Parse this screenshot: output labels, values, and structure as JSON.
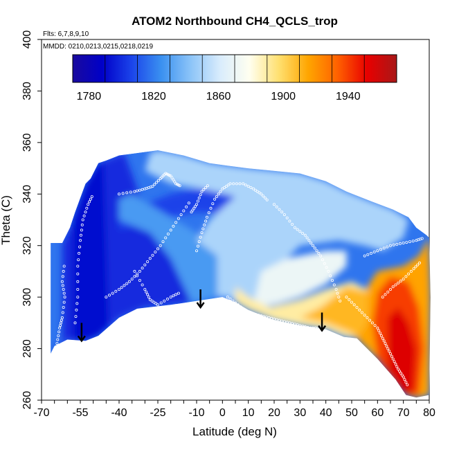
{
  "chart_data": {
    "type": "heatmap",
    "title": "ATOM2 Northbound CH4_QCLS_trop",
    "flights_note": "Flts: 6,7,8,9,10",
    "dates_note": "MMDD: 0210,0213,0215,0218,0219",
    "xlabel": "Latitude (deg N)",
    "ylabel": "Theta (C)",
    "xlim": [
      -70,
      80
    ],
    "ylim": [
      260,
      400
    ],
    "x_ticks": [
      -70,
      -55,
      -40,
      -25,
      -10,
      0,
      10,
      20,
      30,
      40,
      50,
      60,
      70,
      80
    ],
    "x_minor_step": 5,
    "y_ticks": [
      260,
      280,
      300,
      320,
      340,
      360,
      380,
      400
    ],
    "colorbar": {
      "range": [
        1770,
        1970
      ],
      "step": 20,
      "tick_values": [
        1780,
        1820,
        1860,
        1900,
        1940
      ],
      "colors": [
        "#1a0a9e",
        "#0000c8",
        "#1b44ea",
        "#3a90f0",
        "#8cc4f8",
        "#d9ecfc",
        "#fffff0",
        "#ffe070",
        "#ffa500",
        "#ff6000",
        "#e80000",
        "#a81818"
      ]
    },
    "field_polygon": [
      [
        -66.5,
        278
      ],
      [
        -65,
        281
      ],
      [
        -60,
        283.5
      ],
      [
        -53,
        283
      ],
      [
        -48,
        285
      ],
      [
        -40,
        292
      ],
      [
        -33,
        295.5
      ],
      [
        -20,
        297
      ],
      [
        -10,
        298.5
      ],
      [
        0,
        300
      ],
      [
        5,
        298
      ],
      [
        10,
        295
      ],
      [
        20,
        291
      ],
      [
        30,
        289
      ],
      [
        40,
        287.5
      ],
      [
        47,
        284.5
      ],
      [
        52,
        284
      ],
      [
        60,
        276
      ],
      [
        67,
        268
      ],
      [
        71,
        262
      ],
      [
        75,
        261
      ],
      [
        80,
        262
      ],
      [
        80.5,
        300
      ],
      [
        80,
        323
      ],
      [
        79,
        324
      ],
      [
        75,
        327
      ],
      [
        72,
        331
      ],
      [
        66,
        334
      ],
      [
        58,
        337
      ],
      [
        48,
        341
      ],
      [
        40,
        345
      ],
      [
        30,
        348
      ],
      [
        20,
        349
      ],
      [
        10,
        350
      ],
      [
        2,
        351
      ],
      [
        -5,
        352
      ],
      [
        -15,
        355
      ],
      [
        -25,
        357
      ],
      [
        -40,
        355
      ],
      [
        -45,
        353
      ],
      [
        -48,
        352
      ],
      [
        -51,
        346
      ],
      [
        -53,
        344
      ],
      [
        -57,
        333
      ],
      [
        -59,
        327
      ],
      [
        -62,
        321
      ],
      [
        -66.5,
        321
      ]
    ],
    "field_regions": [
      {
        "value": 1800,
        "points": [
          [
            -66.5,
            278
          ],
          [
            -60,
            283.5
          ],
          [
            -53,
            283
          ],
          [
            -48,
            285
          ],
          [
            -40,
            292
          ],
          [
            -30,
            296
          ],
          [
            -20,
            297
          ],
          [
            -12,
            298
          ],
          [
            -12,
            308
          ],
          [
            -20,
            315
          ],
          [
            -28,
            325
          ],
          [
            -33,
            342
          ],
          [
            -38,
            356
          ],
          [
            -48,
            352
          ],
          [
            -53,
            344
          ],
          [
            -57,
            333
          ],
          [
            -59,
            327
          ],
          [
            -62,
            321
          ],
          [
            -62,
            283
          ]
        ]
      },
      {
        "value": 1792,
        "points": [
          [
            -58,
            283.5
          ],
          [
            -53,
            283
          ],
          [
            -48,
            285
          ],
          [
            -44,
            289
          ],
          [
            -45,
            320
          ],
          [
            -46,
            352
          ],
          [
            -48,
            352
          ],
          [
            -53,
            344
          ],
          [
            -57,
            333
          ],
          [
            -58,
            327
          ]
        ]
      },
      {
        "value": 1806,
        "points": [
          [
            -40,
            330
          ],
          [
            -30,
            336
          ],
          [
            -20,
            340
          ],
          [
            -10,
            342
          ],
          [
            5,
            341
          ],
          [
            20,
            337
          ],
          [
            30,
            333
          ],
          [
            30,
            326
          ],
          [
            20,
            330
          ],
          [
            5,
            332
          ],
          [
            -10,
            333
          ],
          [
            -25,
            330
          ],
          [
            -40,
            326
          ]
        ]
      },
      {
        "value": 1828,
        "points": [
          [
            -12,
            298
          ],
          [
            -2,
            300
          ],
          [
            -2,
            316
          ],
          [
            -10,
            325
          ],
          [
            -25,
            334
          ],
          [
            -35,
            340
          ],
          [
            -40,
            338
          ],
          [
            -40,
            330
          ],
          [
            -28,
            325
          ],
          [
            -20,
            315
          ]
        ]
      },
      {
        "value": 1850,
        "points": [
          [
            -2,
            300
          ],
          [
            2,
            300
          ],
          [
            5,
            298
          ],
          [
            10,
            295
          ],
          [
            18,
            292
          ],
          [
            20,
            310
          ],
          [
            30,
            320
          ],
          [
            45,
            322
          ],
          [
            55,
            320
          ],
          [
            62,
            318
          ],
          [
            70,
            323
          ],
          [
            72,
            330
          ],
          [
            66,
            334
          ],
          [
            58,
            337
          ],
          [
            48,
            341
          ],
          [
            40,
            345
          ],
          [
            30,
            348
          ],
          [
            20,
            349
          ],
          [
            10,
            350
          ],
          [
            2,
            351
          ],
          [
            -5,
            352
          ],
          [
            -15,
            355
          ],
          [
            -25,
            357
          ],
          [
            -28,
            356
          ],
          [
            -30,
            349
          ],
          [
            -20,
            344
          ],
          [
            -8,
            342
          ],
          [
            5,
            339
          ],
          [
            -5,
            330
          ],
          [
            -10,
            322
          ],
          [
            -2,
            316
          ]
        ]
      },
      {
        "value": 1870,
        "points": [
          [
            15,
            310
          ],
          [
            25,
            315
          ],
          [
            40,
            318
          ],
          [
            48,
            318
          ],
          [
            48,
            312
          ],
          [
            40,
            305
          ],
          [
            30,
            300
          ],
          [
            20,
            297
          ],
          [
            12,
            297
          ]
        ]
      },
      {
        "value": 1890,
        "points": [
          [
            5,
            298
          ],
          [
            10,
            295
          ],
          [
            20,
            291
          ],
          [
            30,
            289
          ],
          [
            40,
            287.5
          ],
          [
            47,
            284.5
          ],
          [
            52,
            284
          ],
          [
            56,
            290
          ],
          [
            58,
            302
          ],
          [
            50,
            306
          ],
          [
            40,
            303
          ],
          [
            30,
            299
          ],
          [
            18,
            296
          ],
          [
            10,
            300
          ],
          [
            5,
            304
          ]
        ]
      },
      {
        "value": 1910,
        "points": [
          [
            30,
            292
          ],
          [
            40,
            290
          ],
          [
            50,
            286
          ],
          [
            52,
            284
          ],
          [
            56,
            290
          ],
          [
            56,
            302
          ],
          [
            48,
            304
          ],
          [
            38,
            296
          ]
        ]
      },
      {
        "value": 1916,
        "points": [
          [
            52,
            284
          ],
          [
            60,
            276
          ],
          [
            67,
            268
          ],
          [
            71,
            262
          ],
          [
            75,
            261
          ],
          [
            80,
            262
          ],
          [
            80.5,
            300
          ],
          [
            80,
            323
          ],
          [
            76,
            316
          ],
          [
            70,
            312
          ],
          [
            60,
            310
          ],
          [
            56,
            304
          ],
          [
            56,
            290
          ]
        ]
      },
      {
        "value": 1940,
        "points": [
          [
            60,
            276
          ],
          [
            66,
            268
          ],
          [
            71,
            262
          ],
          [
            76,
            262
          ],
          [
            78,
            280
          ],
          [
            76,
            296
          ],
          [
            72,
            306
          ],
          [
            65,
            308
          ],
          [
            60,
            302
          ],
          [
            58,
            290
          ]
        ]
      },
      {
        "value": 1955,
        "points": [
          [
            64,
            272
          ],
          [
            70,
            263
          ],
          [
            74,
            263
          ],
          [
            75,
            280
          ],
          [
            72,
            290
          ],
          [
            68,
            296
          ],
          [
            64,
            292
          ]
        ]
      }
    ],
    "flight_tracks": [
      [
        [
          -64,
          282
        ],
        [
          -63,
          288
        ],
        [
          -62,
          292
        ],
        [
          -61,
          300
        ],
        [
          -62,
          306
        ],
        [
          -61,
          314
        ]
      ],
      [
        [
          -57,
          290
        ],
        [
          -56,
          300
        ],
        [
          -56,
          312
        ],
        [
          -55,
          322
        ],
        [
          -54,
          330
        ],
        [
          -52,
          336
        ],
        [
          -50,
          340
        ]
      ],
      [
        [
          -40,
          340
        ],
        [
          -34,
          341
        ],
        [
          -30,
          342
        ],
        [
          -27,
          343
        ],
        [
          -24,
          346
        ],
        [
          -22,
          348
        ],
        [
          -20,
          347
        ],
        [
          -18,
          344
        ],
        [
          -16,
          343
        ]
      ],
      [
        [
          -34,
          310
        ],
        [
          -30,
          303
        ],
        [
          -28,
          299
        ],
        [
          -25,
          297
        ],
        [
          -20,
          300
        ],
        [
          -16,
          302
        ]
      ],
      [
        [
          -10,
          318
        ],
        [
          -8,
          325
        ],
        [
          -6,
          331
        ],
        [
          -3,
          338
        ],
        [
          0,
          342
        ],
        [
          3,
          344
        ],
        [
          8,
          344
        ],
        [
          12,
          342
        ],
        [
          15,
          340
        ],
        [
          18,
          337
        ]
      ],
      [
        [
          20,
          336
        ],
        [
          24,
          332
        ],
        [
          28,
          327
        ],
        [
          32,
          324
        ],
        [
          35,
          320
        ],
        [
          38,
          316
        ],
        [
          41,
          310
        ],
        [
          44,
          303
        ],
        [
          46,
          297
        ]
      ],
      [
        [
          -12,
          333
        ],
        [
          -10,
          336
        ],
        [
          -8,
          341
        ],
        [
          -5,
          344
        ]
      ],
      [
        [
          48,
          300
        ],
        [
          52,
          296
        ],
        [
          56,
          292
        ],
        [
          60,
          288
        ],
        [
          62,
          284
        ],
        [
          64,
          280
        ],
        [
          66,
          276
        ],
        [
          68,
          272
        ],
        [
          70,
          269
        ],
        [
          72,
          265
        ]
      ],
      [
        [
          55,
          316
        ],
        [
          60,
          318
        ],
        [
          65,
          320
        ],
        [
          70,
          321
        ],
        [
          75,
          322
        ],
        [
          78,
          323
        ]
      ],
      [
        [
          2,
          300
        ],
        [
          6,
          297
        ],
        [
          10,
          294
        ],
        [
          14,
          293
        ],
        [
          18,
          292
        ],
        [
          22,
          291
        ],
        [
          26,
          290
        ],
        [
          30,
          289
        ],
        [
          34,
          288
        ],
        [
          38,
          288
        ]
      ],
      [
        [
          -45,
          300
        ],
        [
          -40,
          303
        ],
        [
          -36,
          306
        ],
        [
          -32,
          310
        ],
        [
          -28,
          315
        ],
        [
          -24,
          320
        ],
        [
          -20,
          326
        ],
        [
          -16,
          332
        ],
        [
          -12,
          338
        ]
      ],
      [
        [
          62,
          300
        ],
        [
          66,
          304
        ],
        [
          70,
          307
        ],
        [
          74,
          311
        ],
        [
          77,
          314
        ]
      ]
    ],
    "arrows": [
      {
        "x": -54.5,
        "y_start": 290,
        "y_end": 283
      },
      {
        "x": -8.5,
        "y_start": 303,
        "y_end": 296
      },
      {
        "x": 38.5,
        "y_start": 294,
        "y_end": 287
      }
    ]
  }
}
